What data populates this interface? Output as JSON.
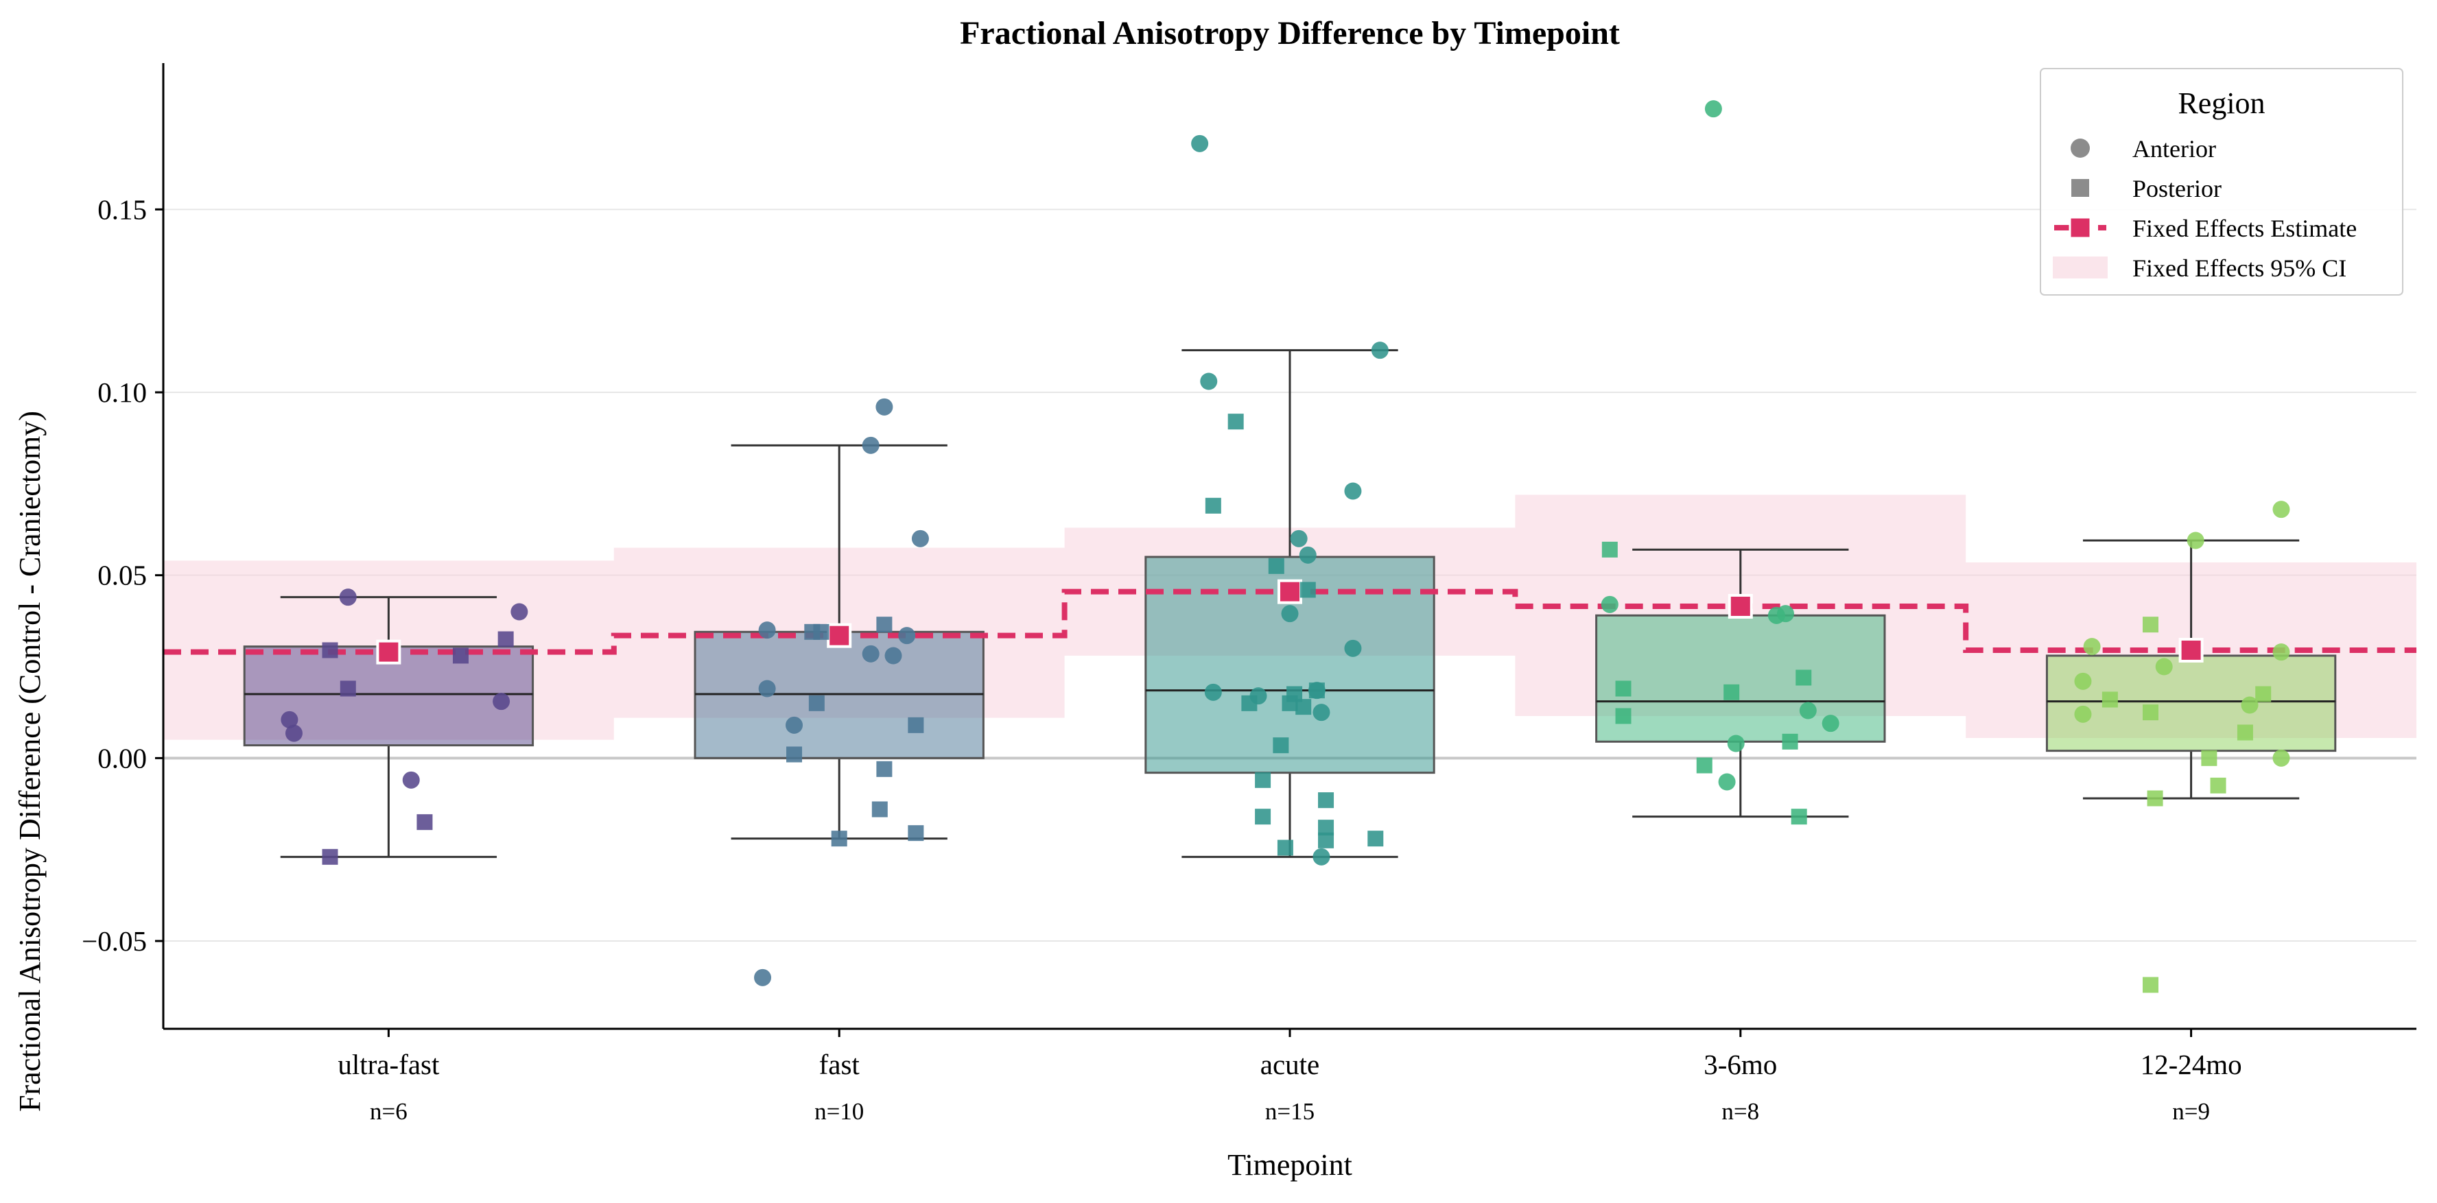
{
  "chart_data": {
    "type": "box",
    "title": "Fractional Anisotropy Difference by Timepoint",
    "xlabel": "Timepoint",
    "ylabel": "Fractional Anisotropy Difference (Control - Craniectomy)",
    "ylim": [
      -0.074,
      0.19
    ],
    "yticks": [
      -0.05,
      0.0,
      0.05,
      0.1,
      0.15
    ],
    "ytick_labels": [
      "−0.05",
      "0.00",
      "0.05",
      "0.10",
      "0.15"
    ],
    "grid": "horizontal",
    "reference_line": 0.0,
    "legend": {
      "title": "Region",
      "placement": "top-right",
      "entries": [
        {
          "label": "Anterior",
          "kind": "circle",
          "color": "#8c8c8c"
        },
        {
          "label": "Posterior",
          "kind": "square",
          "color": "#8c8c8c"
        },
        {
          "label": "Fixed Effects Estimate",
          "kind": "dashed-square",
          "color": "#dc3065"
        },
        {
          "label": "Fixed Effects 95% CI",
          "kind": "patch",
          "color": "#f7d3de"
        }
      ]
    },
    "colors": {
      "estimate": "#dc3065",
      "ci_fill": "#f7d3de",
      "grid": "#e6e6e6",
      "zero_line": "#c8c8c8",
      "whisker": "#333333"
    },
    "categories": [
      "ultra-fast",
      "fast",
      "acute",
      "3-6mo",
      "12-24mo"
    ],
    "n_labels": [
      "n=6",
      "n=10",
      "n=15",
      "n=8",
      "n=9"
    ],
    "groups": [
      {
        "category": "ultra-fast",
        "color": "#58488c",
        "box": {
          "q1": 0.0035,
          "median": 0.0175,
          "q3": 0.0305,
          "whisker_low": -0.027,
          "whisker_high": 0.044
        },
        "estimate": 0.029,
        "ci": [
          0.005,
          0.054
        ],
        "points": [
          {
            "x": -0.22,
            "y": 0.0105,
            "shape": "circle"
          },
          {
            "x": -0.21,
            "y": 0.0068,
            "shape": "circle"
          },
          {
            "x": -0.09,
            "y": 0.044,
            "shape": "circle"
          },
          {
            "x": 0.05,
            "y": -0.006,
            "shape": "circle"
          },
          {
            "x": 0.25,
            "y": 0.0155,
            "shape": "circle"
          },
          {
            "x": 0.29,
            "y": 0.04,
            "shape": "circle"
          },
          {
            "x": -0.13,
            "y": 0.0295,
            "shape": "square"
          },
          {
            "x": -0.09,
            "y": 0.019,
            "shape": "square"
          },
          {
            "x": 0.08,
            "y": -0.0175,
            "shape": "square"
          },
          {
            "x": 0.16,
            "y": 0.028,
            "shape": "square"
          },
          {
            "x": 0.26,
            "y": 0.0325,
            "shape": "square"
          },
          {
            "x": -0.13,
            "y": -0.027,
            "shape": "square"
          }
        ]
      },
      {
        "category": "fast",
        "color": "#4a7695",
        "box": {
          "q1": 0.0,
          "median": 0.0175,
          "q3": 0.0345,
          "whisker_low": -0.022,
          "whisker_high": 0.0855
        },
        "estimate": 0.0335,
        "ci": [
          0.011,
          0.0575
        ],
        "points": [
          {
            "x": -0.17,
            "y": -0.06,
            "shape": "circle"
          },
          {
            "x": -0.16,
            "y": 0.035,
            "shape": "circle"
          },
          {
            "x": -0.16,
            "y": 0.019,
            "shape": "circle"
          },
          {
            "x": -0.1,
            "y": 0.009,
            "shape": "circle"
          },
          {
            "x": 0.07,
            "y": 0.0855,
            "shape": "circle"
          },
          {
            "x": 0.1,
            "y": 0.096,
            "shape": "circle"
          },
          {
            "x": 0.07,
            "y": 0.0285,
            "shape": "circle"
          },
          {
            "x": 0.12,
            "y": 0.028,
            "shape": "circle"
          },
          {
            "x": 0.15,
            "y": 0.0335,
            "shape": "circle"
          },
          {
            "x": 0.18,
            "y": 0.06,
            "shape": "circle"
          },
          {
            "x": -0.06,
            "y": 0.0345,
            "shape": "square"
          },
          {
            "x": -0.1,
            "y": 0.001,
            "shape": "square"
          },
          {
            "x": -0.05,
            "y": 0.015,
            "shape": "square"
          },
          {
            "x": -0.04,
            "y": 0.0345,
            "shape": "square"
          },
          {
            "x": 0.0,
            "y": -0.022,
            "shape": "square"
          },
          {
            "x": 0.1,
            "y": -0.003,
            "shape": "square"
          },
          {
            "x": 0.1,
            "y": 0.0365,
            "shape": "square"
          },
          {
            "x": 0.09,
            "y": -0.014,
            "shape": "square"
          },
          {
            "x": 0.17,
            "y": 0.009,
            "shape": "square"
          },
          {
            "x": 0.17,
            "y": -0.0205,
            "shape": "square"
          }
        ]
      },
      {
        "category": "acute",
        "color": "#30948c",
        "box": {
          "q1": -0.004,
          "median": 0.0185,
          "q3": 0.055,
          "whisker_low": -0.027,
          "whisker_high": 0.1115
        },
        "estimate": 0.0455,
        "ci": [
          0.028,
          0.063
        ],
        "points": [
          {
            "x": -0.2,
            "y": 0.168,
            "shape": "circle"
          },
          {
            "x": -0.18,
            "y": 0.103,
            "shape": "circle"
          },
          {
            "x": -0.17,
            "y": 0.018,
            "shape": "circle"
          },
          {
            "x": -0.07,
            "y": 0.017,
            "shape": "circle"
          },
          {
            "x": 0.0,
            "y": 0.0395,
            "shape": "circle"
          },
          {
            "x": 0.02,
            "y": 0.06,
            "shape": "circle"
          },
          {
            "x": 0.04,
            "y": 0.0555,
            "shape": "circle"
          },
          {
            "x": 0.06,
            "y": 0.0185,
            "shape": "circle"
          },
          {
            "x": 0.07,
            "y": 0.0125,
            "shape": "circle"
          },
          {
            "x": 0.07,
            "y": -0.027,
            "shape": "circle"
          },
          {
            "x": 0.14,
            "y": 0.073,
            "shape": "circle"
          },
          {
            "x": 0.14,
            "y": 0.03,
            "shape": "circle"
          },
          {
            "x": 0.2,
            "y": 0.1115,
            "shape": "circle"
          },
          {
            "x": -0.12,
            "y": 0.092,
            "shape": "square"
          },
          {
            "x": -0.17,
            "y": 0.069,
            "shape": "square"
          },
          {
            "x": -0.09,
            "y": 0.015,
            "shape": "square"
          },
          {
            "x": -0.06,
            "y": -0.006,
            "shape": "square"
          },
          {
            "x": -0.06,
            "y": -0.016,
            "shape": "square"
          },
          {
            "x": -0.03,
            "y": 0.0525,
            "shape": "square"
          },
          {
            "x": -0.02,
            "y": 0.0035,
            "shape": "square"
          },
          {
            "x": -0.01,
            "y": -0.0245,
            "shape": "square"
          },
          {
            "x": 0.01,
            "y": 0.0175,
            "shape": "square"
          },
          {
            "x": 0.03,
            "y": 0.014,
            "shape": "square"
          },
          {
            "x": 0.04,
            "y": 0.046,
            "shape": "square"
          },
          {
            "x": 0.06,
            "y": 0.0185,
            "shape": "square"
          },
          {
            "x": 0.08,
            "y": -0.0115,
            "shape": "square"
          },
          {
            "x": 0.08,
            "y": -0.019,
            "shape": "square"
          },
          {
            "x": 0.08,
            "y": -0.0225,
            "shape": "square"
          },
          {
            "x": 0.19,
            "y": -0.022,
            "shape": "square"
          },
          {
            "x": 0.0,
            "y": 0.015,
            "shape": "square"
          }
        ]
      },
      {
        "category": "3-6mo",
        "color": "#3db57e",
        "box": {
          "q1": 0.0045,
          "median": 0.0155,
          "q3": 0.039,
          "whisker_low": -0.016,
          "whisker_high": 0.057
        },
        "estimate": 0.0415,
        "ci": [
          0.0115,
          0.072
        ],
        "points": [
          {
            "x": -0.29,
            "y": 0.042,
            "shape": "circle"
          },
          {
            "x": -0.06,
            "y": 0.1775,
            "shape": "circle"
          },
          {
            "x": -0.03,
            "y": -0.0065,
            "shape": "circle"
          },
          {
            "x": -0.01,
            "y": 0.004,
            "shape": "circle"
          },
          {
            "x": 0.08,
            "y": 0.039,
            "shape": "circle"
          },
          {
            "x": 0.1,
            "y": 0.0395,
            "shape": "circle"
          },
          {
            "x": 0.15,
            "y": 0.013,
            "shape": "circle"
          },
          {
            "x": 0.2,
            "y": 0.0095,
            "shape": "circle"
          },
          {
            "x": -0.29,
            "y": 0.057,
            "shape": "square"
          },
          {
            "x": -0.26,
            "y": 0.019,
            "shape": "square"
          },
          {
            "x": -0.26,
            "y": 0.0115,
            "shape": "square"
          },
          {
            "x": -0.08,
            "y": -0.002,
            "shape": "square"
          },
          {
            "x": -0.02,
            "y": 0.018,
            "shape": "square"
          },
          {
            "x": 0.11,
            "y": 0.0045,
            "shape": "square"
          },
          {
            "x": 0.13,
            "y": -0.016,
            "shape": "square"
          },
          {
            "x": 0.14,
            "y": 0.022,
            "shape": "square"
          }
        ]
      },
      {
        "category": "12-24mo",
        "color": "#8ed25e",
        "box": {
          "q1": 0.002,
          "median": 0.0155,
          "q3": 0.028,
          "whisker_low": -0.011,
          "whisker_high": 0.0595
        },
        "estimate": 0.0295,
        "ci": [
          0.0055,
          0.0535
        ],
        "points": [
          {
            "x": -0.24,
            "y": 0.021,
            "shape": "circle"
          },
          {
            "x": -0.24,
            "y": 0.012,
            "shape": "circle"
          },
          {
            "x": -0.22,
            "y": 0.0305,
            "shape": "circle"
          },
          {
            "x": -0.06,
            "y": 0.025,
            "shape": "circle"
          },
          {
            "x": 0.01,
            "y": 0.0595,
            "shape": "circle"
          },
          {
            "x": 0.13,
            "y": 0.0145,
            "shape": "circle"
          },
          {
            "x": 0.2,
            "y": 0.068,
            "shape": "circle"
          },
          {
            "x": 0.2,
            "y": 0.0,
            "shape": "circle"
          },
          {
            "x": 0.2,
            "y": 0.029,
            "shape": "circle"
          },
          {
            "x": -0.09,
            "y": 0.0365,
            "shape": "square"
          },
          {
            "x": -0.18,
            "y": 0.016,
            "shape": "square"
          },
          {
            "x": -0.09,
            "y": 0.0125,
            "shape": "square"
          },
          {
            "x": -0.08,
            "y": -0.011,
            "shape": "square"
          },
          {
            "x": 0.04,
            "y": 0.0,
            "shape": "square"
          },
          {
            "x": 0.06,
            "y": -0.0075,
            "shape": "square"
          },
          {
            "x": 0.12,
            "y": 0.007,
            "shape": "square"
          },
          {
            "x": 0.16,
            "y": 0.0175,
            "shape": "square"
          },
          {
            "x": -0.09,
            "y": -0.062,
            "shape": "square"
          }
        ]
      }
    ]
  }
}
